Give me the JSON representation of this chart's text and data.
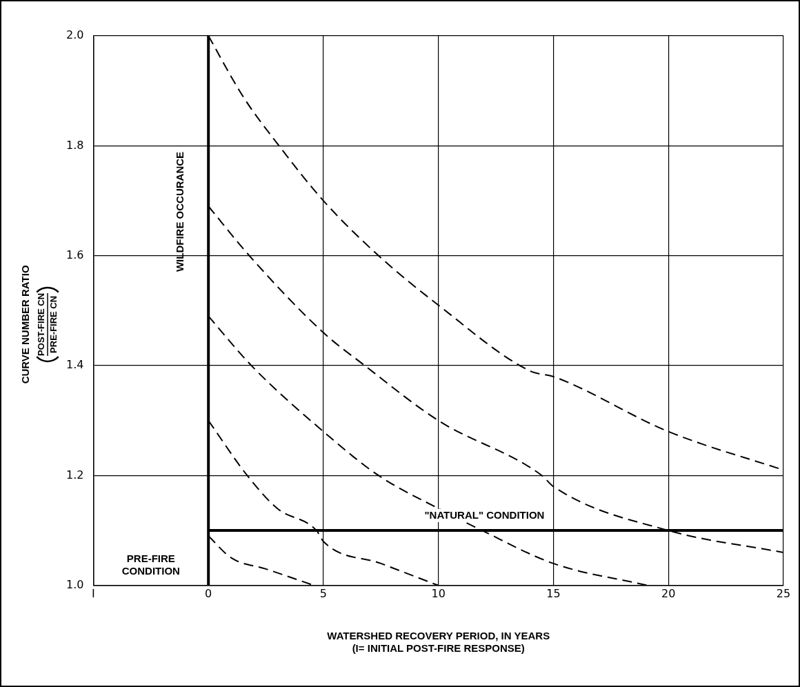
{
  "chart_data": {
    "type": "line",
    "xlabel": "WATERSHED RECOVERY PERIOD, IN YEARS\n(I= INITIAL POST-FIRE RESPONSE)",
    "ylabel": "CURVE NUMBER RATIO\nPOST-FIRE CN\nPRE-FIRE CN",
    "xlim": [
      -5,
      25
    ],
    "xticks": [
      {
        "value": -5,
        "label": "I"
      },
      0,
      5,
      10,
      15,
      20,
      25
    ],
    "ylim": [
      1,
      2
    ],
    "yticks": [
      {
        "value": 1,
        "label": "1.0"
      },
      1.2,
      1.4,
      1.6,
      1.8,
      {
        "value": 2,
        "label": "2.0"
      }
    ],
    "grid": true,
    "legend": false,
    "marker": "none",
    "series": [
      {
        "color": "#000000",
        "line_style": "dashed",
        "x": [
          0,
          1.5,
          3.07,
          5,
          7.4,
          10,
          14,
          15,
          20,
          25
        ],
        "values": [
          2.0,
          1.89,
          1.8,
          1.7,
          1.6,
          1.51,
          1.39,
          1.38,
          1.28,
          1.21
        ]
      },
      {
        "color": "#000000",
        "line_style": "dashed",
        "x": [
          0,
          1.78,
          5,
          6.8,
          10,
          14.5,
          15,
          20,
          25
        ],
        "values": [
          1.69,
          1.6,
          1.46,
          1.4,
          1.3,
          1.2,
          1.18,
          1.1,
          1.06
        ]
      },
      {
        "color": "#000000",
        "line_style": "dashed",
        "x": [
          0,
          1.87,
          5,
          7.4,
          10,
          11.9,
          15,
          19.1
        ],
        "values": [
          1.49,
          1.4,
          1.28,
          1.2,
          1.14,
          1.1,
          1.04,
          1.0
        ]
      },
      {
        "color": "#000000",
        "line_style": "dashed",
        "x": [
          0,
          1.69,
          3,
          4.7,
          5,
          7.5,
          10
        ],
        "values": [
          1.3,
          1.2,
          1.14,
          1.1,
          1.08,
          1.04,
          1.0
        ]
      },
      {
        "color": "#000000",
        "line_style": "dashed",
        "x": [
          0,
          1,
          2.5,
          4.6
        ],
        "values": [
          1.09,
          1.05,
          1.03,
          1.0
        ]
      },
      {
        "color": "#000000",
        "line_style": "solid",
        "x": [
          0,
          25
        ],
        "values": [
          1.1,
          1.1
        ]
      }
    ],
    "ref_lines": [
      {
        "axis": "x",
        "value": 0,
        "label": "WILDFIRE OCCURANCE",
        "color": "#000000"
      }
    ],
    "annotations": [
      {
        "text": "\"NATURAL\" CONDITION",
        "x": 12,
        "y": 1.1
      },
      "PRE-FIRE\nCONDITION"
    ]
  }
}
